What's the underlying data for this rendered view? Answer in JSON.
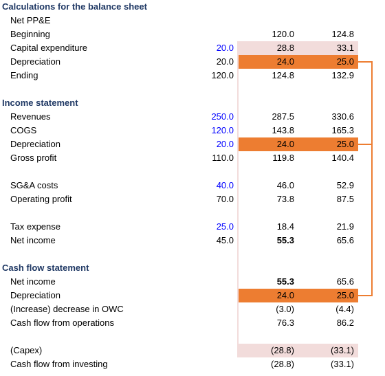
{
  "sections": {
    "balance_sheet": "Calculations for the balance sheet",
    "income_statement": "Income statement",
    "cash_flow": "Cash flow statement"
  },
  "bs": {
    "net_ppe": "Net PP&E",
    "beginning": {
      "label": "Beginning",
      "y1": "120.0",
      "y2": "124.8"
    },
    "capex": {
      "label": "Capital expenditure",
      "in": "20.0",
      "y1": "28.8",
      "y2": "33.1"
    },
    "depreciation": {
      "label": "Depreciation",
      "in": "20.0",
      "y1": "24.0",
      "y2": "25.0"
    },
    "ending": {
      "label": "Ending",
      "in": "120.0",
      "y1": "124.8",
      "y2": "132.9"
    }
  },
  "is": {
    "revenues": {
      "label": "Revenues",
      "in": "250.0",
      "y1": "287.5",
      "y2": "330.6"
    },
    "cogs": {
      "label": "COGS",
      "in": "120.0",
      "y1": "143.8",
      "y2": "165.3"
    },
    "depreciation": {
      "label": "Depreciation",
      "in": "20.0",
      "y1": "24.0",
      "y2": "25.0"
    },
    "gross_profit": {
      "label": "Gross profit",
      "in": "110.0",
      "y1": "119.8",
      "y2": "140.4"
    },
    "sga": {
      "label": "SG&A costs",
      "in": "40.0",
      "y1": "46.0",
      "y2": "52.9"
    },
    "operating_profit": {
      "label": "Operating profit",
      "in": "70.0",
      "y1": "73.8",
      "y2": "87.5"
    },
    "tax": {
      "label": "Tax expense",
      "in": "25.0",
      "y1": "18.4",
      "y2": "21.9"
    },
    "net_income": {
      "label": "Net income",
      "in": "45.0",
      "y1": "55.3",
      "y2": "65.6"
    }
  },
  "cf": {
    "net_income": {
      "label": "Net income",
      "y1": "55.3",
      "y2": "65.6"
    },
    "depreciation": {
      "label": "Depreciation",
      "y1": "24.0",
      "y2": "25.0"
    },
    "owc": {
      "label": "(Increase) decrease in OWC",
      "y1": "(3.0)",
      "y2": "(4.4)"
    },
    "cfo": {
      "label": "Cash flow from operations",
      "y1": "76.3",
      "y2": "86.2"
    },
    "capex": {
      "label": "(Capex)",
      "y1": "(28.8)",
      "y2": "(33.1)"
    },
    "cfi": {
      "label": "Cash flow from investing",
      "y1": "(28.8)",
      "y2": "(33.1)"
    }
  },
  "colors": {
    "highlight_orange": "#ed7d31",
    "highlight_pink": "#f2dcdb",
    "input_blue": "#0000ff",
    "heading_navy": "#1f3864"
  }
}
